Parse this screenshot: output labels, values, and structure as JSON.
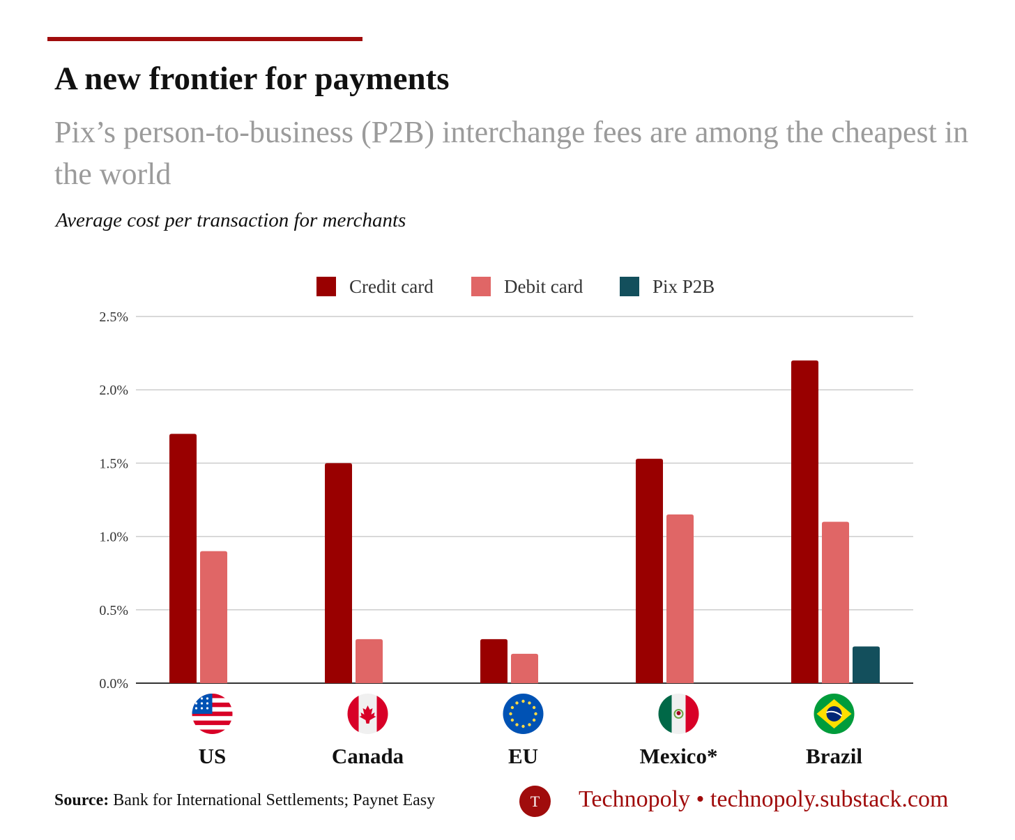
{
  "header": {
    "title": "A new frontier for payments",
    "subtitle": "Pix’s person-to-business (P2B) interchange fees are among the cheapest in the world",
    "caption": "Average cost per transaction for merchants"
  },
  "chart_data": {
    "type": "bar",
    "title": "A new frontier for payments",
    "subtitle": "Pix’s person-to-business (P2B) interchange fees are among the cheapest in the world",
    "ylabel": "Average cost per transaction for merchants",
    "xlabel": "",
    "categories": [
      "US",
      "Canada",
      "EU",
      "Mexico*",
      "Brazil"
    ],
    "category_flags": [
      "us-flag-icon",
      "canada-flag-icon",
      "eu-flag-icon",
      "mexico-flag-icon",
      "brazil-flag-icon"
    ],
    "series": [
      {
        "name": "Credit card",
        "color": "#990000",
        "values": [
          1.7,
          1.5,
          0.3,
          1.53,
          2.2
        ]
      },
      {
        "name": "Debit card",
        "color": "#e06666",
        "values": [
          0.9,
          0.3,
          0.2,
          1.15,
          1.1
        ]
      },
      {
        "name": "Pix P2B",
        "color": "#134f5c",
        "values": [
          null,
          null,
          null,
          null,
          0.25
        ]
      }
    ],
    "ylim": [
      0,
      2.5
    ],
    "yticks": [
      0.0,
      0.5,
      1.0,
      1.5,
      2.0,
      2.5
    ],
    "ytick_labels": [
      "0.0%",
      "0.5%",
      "1.0%",
      "1.5%",
      "2.0%",
      "2.5%"
    ],
    "grid": true,
    "legend_position": "top-center"
  },
  "footer": {
    "source_label": "Source:",
    "source_text": "Bank for International Settlements; Paynet Easy",
    "logo_letter": "T",
    "brand": "Technopoly • technopoly.substack.com"
  }
}
